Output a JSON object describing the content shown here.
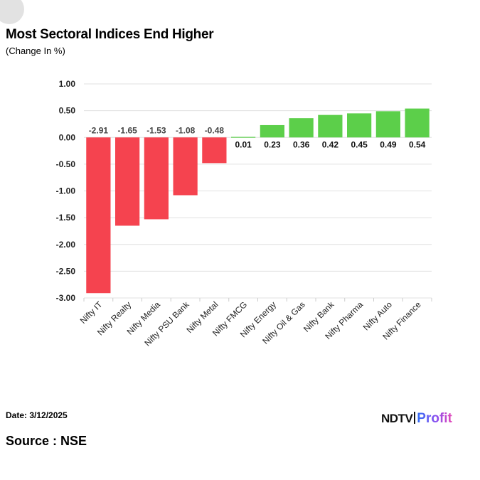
{
  "header": {
    "title": "Most Sectoral Indices End Higher",
    "subtitle": "(Change In %)"
  },
  "footer": {
    "date": "Date: 3/12/2025",
    "source": "Source : NSE"
  },
  "logo": {
    "brand": "NDTV",
    "product": "Profit"
  },
  "colors": {
    "negative": "#f5434f",
    "positive": "#5ccf4a",
    "grid": "#e0e0e0"
  },
  "chart_data": {
    "type": "bar",
    "title": "Most Sectoral Indices End Higher",
    "subtitle": "(Change In %)",
    "xlabel": "",
    "ylabel": "",
    "ylim": [
      -3.0,
      1.0
    ],
    "yticks": [
      1.0,
      0.5,
      0.0,
      -0.5,
      -1.0,
      -1.5,
      -2.0,
      -2.5,
      -3.0
    ],
    "ytick_labels": [
      "1.00",
      "0.50",
      "0.00",
      "-0.50",
      "-1.00",
      "-1.50",
      "-2.00",
      "-2.50",
      "-3.00"
    ],
    "grid": true,
    "legend": "none",
    "categories": [
      "Nifty IT",
      "Nifty Realty",
      "Nifty Media",
      "Nifty PSU Bank",
      "Nifty Metal",
      "Nifty FMCG",
      "Nifty Energy",
      "Nifty Oil & Gas",
      "Nifty Bank",
      "Nifty Pharma",
      "Nifty Auto",
      "Nifty Finance"
    ],
    "values": [
      -2.91,
      -1.65,
      -1.53,
      -1.08,
      -0.48,
      0.01,
      0.23,
      0.36,
      0.42,
      0.45,
      0.49,
      0.54
    ],
    "value_labels": [
      "-2.91",
      "-1.65",
      "-1.53",
      "-1.08",
      "-0.48",
      "0.01",
      "0.23",
      "0.36",
      "0.42",
      "0.45",
      "0.49",
      "0.54"
    ]
  }
}
